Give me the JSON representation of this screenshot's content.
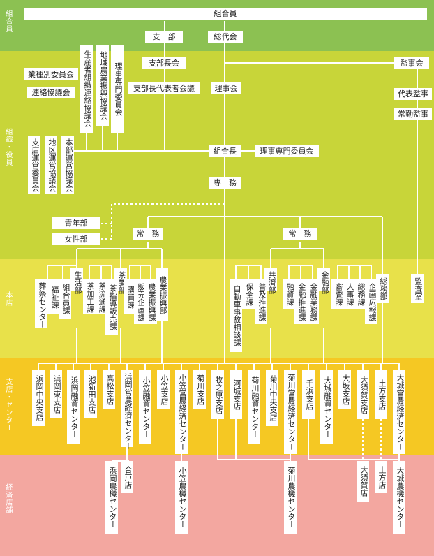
{
  "bands": [
    {
      "id": "b1",
      "label": "組合員",
      "color": "#8cc152"
    },
    {
      "id": "b2",
      "label": "組織・役員",
      "color": "#c8d539"
    },
    {
      "id": "b3",
      "label": "本店",
      "color": "#e8e14a"
    },
    {
      "id": "b4",
      "label": "支店・センター",
      "color": "#f5c823"
    },
    {
      "id": "b5",
      "label": "経済店舗",
      "color": "#f3a7a0"
    }
  ],
  "nodes": {
    "kumiaiin": "組合員",
    "shibu": "支　部",
    "soudaikai": "総代会",
    "shibuchokai": "支部長会",
    "shibuchodaihyo": "支部長代表者会議",
    "rijikai": "理事会",
    "kansakai": "監事会",
    "daihyokanji": "代表監事",
    "jokinkanji": "常勤監事",
    "gyoshu": "業種別委員会",
    "renraku": "連絡協議会",
    "seisansha": "生産者組織連絡協議会",
    "chiiki_shinko": "地域農業振興協議会",
    "riji_senmon_v": "理事専門委員会",
    "shiten_unei": "支店運営委員会",
    "chiku_unei": "地区運営協議会",
    "honbu_unei": "本部運営協議会",
    "kumiaicho": "組合長",
    "riji_senmon": "理事専門委員会",
    "senmu": "専　務",
    "seinenbu": "青年部",
    "joseibu": "女性部",
    "jomu1": "常　務",
    "jomu2": "常　務",
    "kansashitsu": "監査室",
    "seikatsubu": "生活部",
    "sousai": "葬祭センター",
    "fukushi": "福祉課",
    "kumiaiinka": "組合員課",
    "chakako": "茶加工課",
    "charyutsu": "茶流通課",
    "chashido": "茶指導販売課",
    "chagyobu": "茶業部",
    "konyu": "購買課",
    "hanbai": "販売企画課",
    "nogyoshinko": "農業振興課",
    "nogyobu": "農業振興部",
    "jidosha": "自動車事故相談課",
    "hozen": "保全課",
    "fukyu": "普及推進課",
    "kyosaibu": "共済部",
    "yushi": "融資課",
    "kinyusuishin": "金融推進課",
    "kinyugyomu": "金融業務課",
    "kinyubu": "金融部",
    "shinsa": "審査課",
    "jinji": "人事課",
    "somu": "総務課",
    "kikaku": "企画広報課",
    "somubu": "総務部",
    "s1": "浜岡中央支店",
    "s2": "浜岡東支店",
    "s3": "浜岡融資センター",
    "s4": "池新田支店",
    "s5": "高松支店",
    "s6": "浜岡営農経済センター",
    "s7": "小笠融資センター",
    "s8": "小笠支店",
    "s9": "小笠営農経済センター",
    "s10": "菊川支店",
    "s11": "牧之原支店",
    "s12": "河城支店",
    "s13": "菊川融資センター",
    "s14": "菊川中央支店",
    "s15": "菊川営農経済センター",
    "s16": "千浜支店",
    "s17": "大城融資センター",
    "s18": "大坂支店",
    "s19": "大須賀支店",
    "s20": "土方支店",
    "s21": "大城営農経済センター",
    "e1": "浜岡農機センター",
    "e2": "合戸店",
    "e3": "小笠農機センター",
    "e4": "菊川農機センター",
    "e5": "大須賀店",
    "e6": "土方店",
    "e7": "大城農機センター"
  }
}
